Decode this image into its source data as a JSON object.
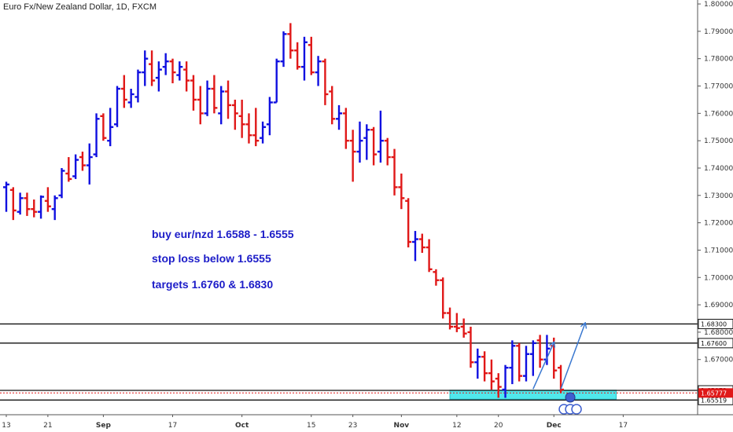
{
  "header": {
    "symbol_title": "Euro Fx/New Zealand Dollar, 1D, FXCM"
  },
  "notes": [
    "buy eur/nzd 1.6588 - 1.6555",
    "stop loss below 1.6555",
    "targets 1.6760 & 1.6830"
  ],
  "colors": {
    "up": "#1010e0",
    "down": "#e01818",
    "zone": "#50e8ec",
    "projection": "#3a78d0",
    "current_price": "#e01818",
    "text_note": "#1c1cc8"
  },
  "chart_data": {
    "type": "ohlc",
    "title": "Euro Fx/New Zealand Dollar, 1D, FXCM",
    "xlabel": "",
    "ylabel": "",
    "ylim": [
      1.6547,
      1.8003
    ],
    "y_ticks": [
      1.8,
      1.79,
      1.78,
      1.77,
      1.76,
      1.75,
      1.74,
      1.73,
      1.72,
      1.71,
      1.7,
      1.69,
      1.68,
      1.67
    ],
    "x_labels": [
      {
        "label": "13",
        "index": 0,
        "bold": false
      },
      {
        "label": "21",
        "index": 6,
        "bold": false
      },
      {
        "label": "Sep",
        "index": 14,
        "bold": true
      },
      {
        "label": "17",
        "index": 24,
        "bold": false
      },
      {
        "label": "Oct",
        "index": 34,
        "bold": true
      },
      {
        "label": "15",
        "index": 44,
        "bold": false
      },
      {
        "label": "23",
        "index": 50,
        "bold": false
      },
      {
        "label": "Nov",
        "index": 57,
        "bold": true
      },
      {
        "label": "12",
        "index": 65,
        "bold": false
      },
      {
        "label": "20",
        "index": 71,
        "bold": false
      },
      {
        "label": "Dec",
        "index": 79,
        "bold": true
      },
      {
        "label": "17",
        "index": 89,
        "bold": false
      }
    ],
    "x_extent": 103,
    "horizontal_lines": [
      {
        "price": 1.683,
        "label": "1.68300",
        "color": "#111111"
      },
      {
        "price": 1.676,
        "label": "1.67600",
        "color": "#111111"
      },
      {
        "price": 1.65872,
        "label": "1.65872",
        "color": "#111111"
      },
      {
        "price": 1.65519,
        "label": "1.65519",
        "color": "#111111"
      }
    ],
    "current_price": {
      "price": 1.65777,
      "label": "1.65777"
    },
    "zone": {
      "top": 1.6588,
      "bottom": 1.6555,
      "start_index": 64,
      "end_index": 88
    },
    "projections": [
      {
        "from": [
          76,
          1.6592
        ],
        "to": [
          79,
          1.6762
        ]
      },
      {
        "from": [
          80,
          1.6592
        ],
        "to": [
          83.5,
          1.6832
        ]
      }
    ],
    "bars": [
      {
        "o": 1.733,
        "h": 1.735,
        "l": 1.724,
        "c": 1.734
      },
      {
        "o": 1.732,
        "h": 1.733,
        "l": 1.721,
        "c": 1.7245
      },
      {
        "o": 1.724,
        "h": 1.731,
        "l": 1.723,
        "c": 1.729
      },
      {
        "o": 1.729,
        "h": 1.731,
        "l": 1.7225,
        "c": 1.725
      },
      {
        "o": 1.725,
        "h": 1.7285,
        "l": 1.722,
        "c": 1.724
      },
      {
        "o": 1.724,
        "h": 1.73,
        "l": 1.7215,
        "c": 1.7295
      },
      {
        "o": 1.728,
        "h": 1.733,
        "l": 1.724,
        "c": 1.726
      },
      {
        "o": 1.725,
        "h": 1.73,
        "l": 1.721,
        "c": 1.729
      },
      {
        "o": 1.73,
        "h": 1.74,
        "l": 1.729,
        "c": 1.739
      },
      {
        "o": 1.738,
        "h": 1.744,
        "l": 1.735,
        "c": 1.736
      },
      {
        "o": 1.737,
        "h": 1.745,
        "l": 1.736,
        "c": 1.743
      },
      {
        "o": 1.744,
        "h": 1.746,
        "l": 1.739,
        "c": 1.741
      },
      {
        "o": 1.741,
        "h": 1.749,
        "l": 1.734,
        "c": 1.744
      },
      {
        "o": 1.745,
        "h": 1.76,
        "l": 1.744,
        "c": 1.758
      },
      {
        "o": 1.759,
        "h": 1.76,
        "l": 1.75,
        "c": 1.751
      },
      {
        "o": 1.75,
        "h": 1.762,
        "l": 1.748,
        "c": 1.755
      },
      {
        "o": 1.756,
        "h": 1.77,
        "l": 1.755,
        "c": 1.769
      },
      {
        "o": 1.769,
        "h": 1.774,
        "l": 1.762,
        "c": 1.765
      },
      {
        "o": 1.764,
        "h": 1.769,
        "l": 1.762,
        "c": 1.767
      },
      {
        "o": 1.766,
        "h": 1.776,
        "l": 1.764,
        "c": 1.775
      },
      {
        "o": 1.775,
        "h": 1.783,
        "l": 1.77,
        "c": 1.78
      },
      {
        "o": 1.778,
        "h": 1.783,
        "l": 1.77,
        "c": 1.772
      },
      {
        "o": 1.773,
        "h": 1.779,
        "l": 1.768,
        "c": 1.776
      },
      {
        "o": 1.777,
        "h": 1.782,
        "l": 1.774,
        "c": 1.779
      },
      {
        "o": 1.779,
        "h": 1.78,
        "l": 1.771,
        "c": 1.775
      },
      {
        "o": 1.774,
        "h": 1.779,
        "l": 1.772,
        "c": 1.777
      },
      {
        "o": 1.776,
        "h": 1.779,
        "l": 1.768,
        "c": 1.772
      },
      {
        "o": 1.772,
        "h": 1.774,
        "l": 1.761,
        "c": 1.765
      },
      {
        "o": 1.765,
        "h": 1.77,
        "l": 1.756,
        "c": 1.76
      },
      {
        "o": 1.76,
        "h": 1.772,
        "l": 1.759,
        "c": 1.769
      },
      {
        "o": 1.769,
        "h": 1.774,
        "l": 1.76,
        "c": 1.762
      },
      {
        "o": 1.76,
        "h": 1.77,
        "l": 1.756,
        "c": 1.768
      },
      {
        "o": 1.768,
        "h": 1.772,
        "l": 1.758,
        "c": 1.763
      },
      {
        "o": 1.763,
        "h": 1.765,
        "l": 1.754,
        "c": 1.76
      },
      {
        "o": 1.759,
        "h": 1.765,
        "l": 1.751,
        "c": 1.756
      },
      {
        "o": 1.756,
        "h": 1.76,
        "l": 1.749,
        "c": 1.752
      },
      {
        "o": 1.752,
        "h": 1.762,
        "l": 1.748,
        "c": 1.75
      },
      {
        "o": 1.751,
        "h": 1.757,
        "l": 1.749,
        "c": 1.755
      },
      {
        "o": 1.756,
        "h": 1.766,
        "l": 1.752,
        "c": 1.764
      },
      {
        "o": 1.764,
        "h": 1.78,
        "l": 1.764,
        "c": 1.779
      },
      {
        "o": 1.779,
        "h": 1.79,
        "l": 1.777,
        "c": 1.789
      },
      {
        "o": 1.789,
        "h": 1.793,
        "l": 1.78,
        "c": 1.783
      },
      {
        "o": 1.783,
        "h": 1.786,
        "l": 1.776,
        "c": 1.777
      },
      {
        "o": 1.777,
        "h": 1.788,
        "l": 1.772,
        "c": 1.786
      },
      {
        "o": 1.785,
        "h": 1.788,
        "l": 1.774,
        "c": 1.775
      },
      {
        "o": 1.775,
        "h": 1.781,
        "l": 1.77,
        "c": 1.779
      },
      {
        "o": 1.779,
        "h": 1.78,
        "l": 1.763,
        "c": 1.767
      },
      {
        "o": 1.768,
        "h": 1.77,
        "l": 1.756,
        "c": 1.758
      },
      {
        "o": 1.758,
        "h": 1.763,
        "l": 1.754,
        "c": 1.76
      },
      {
        "o": 1.76,
        "h": 1.762,
        "l": 1.747,
        "c": 1.75
      },
      {
        "o": 1.75,
        "h": 1.754,
        "l": 1.735,
        "c": 1.746
      },
      {
        "o": 1.746,
        "h": 1.757,
        "l": 1.742,
        "c": 1.75
      },
      {
        "o": 1.751,
        "h": 1.756,
        "l": 1.743,
        "c": 1.754
      },
      {
        "o": 1.754,
        "h": 1.755,
        "l": 1.741,
        "c": 1.745
      },
      {
        "o": 1.746,
        "h": 1.761,
        "l": 1.742,
        "c": 1.75
      },
      {
        "o": 1.75,
        "h": 1.751,
        "l": 1.741,
        "c": 1.744
      },
      {
        "o": 1.744,
        "h": 1.747,
        "l": 1.73,
        "c": 1.733
      },
      {
        "o": 1.733,
        "h": 1.738,
        "l": 1.725,
        "c": 1.729
      },
      {
        "o": 1.728,
        "h": 1.729,
        "l": 1.711,
        "c": 1.713
      },
      {
        "o": 1.713,
        "h": 1.717,
        "l": 1.706,
        "c": 1.714
      },
      {
        "o": 1.714,
        "h": 1.716,
        "l": 1.709,
        "c": 1.711
      },
      {
        "o": 1.711,
        "h": 1.714,
        "l": 1.702,
        "c": 1.703
      },
      {
        "o": 1.702,
        "h": 1.703,
        "l": 1.697,
        "c": 1.699
      },
      {
        "o": 1.699,
        "h": 1.7,
        "l": 1.685,
        "c": 1.687
      },
      {
        "o": 1.687,
        "h": 1.689,
        "l": 1.681,
        "c": 1.682
      },
      {
        "o": 1.682,
        "h": 1.687,
        "l": 1.68,
        "c": 1.6815
      },
      {
        "o": 1.682,
        "h": 1.685,
        "l": 1.678,
        "c": 1.6795
      },
      {
        "o": 1.68,
        "h": 1.682,
        "l": 1.667,
        "c": 1.669
      },
      {
        "o": 1.669,
        "h": 1.674,
        "l": 1.663,
        "c": 1.671
      },
      {
        "o": 1.671,
        "h": 1.673,
        "l": 1.662,
        "c": 1.665
      },
      {
        "o": 1.665,
        "h": 1.67,
        "l": 1.659,
        "c": 1.662
      },
      {
        "o": 1.663,
        "h": 1.665,
        "l": 1.656,
        "c": 1.66
      },
      {
        "o": 1.659,
        "h": 1.668,
        "l": 1.656,
        "c": 1.667
      },
      {
        "o": 1.667,
        "h": 1.677,
        "l": 1.661,
        "c": 1.675
      },
      {
        "o": 1.675,
        "h": 1.676,
        "l": 1.662,
        "c": 1.664
      },
      {
        "o": 1.664,
        "h": 1.675,
        "l": 1.662,
        "c": 1.672
      },
      {
        "o": 1.672,
        "h": 1.677,
        "l": 1.664,
        "c": 1.676
      },
      {
        "o": 1.677,
        "h": 1.679,
        "l": 1.667,
        "c": 1.67
      },
      {
        "o": 1.67,
        "h": 1.679,
        "l": 1.668,
        "c": 1.674
      },
      {
        "o": 1.675,
        "h": 1.678,
        "l": 1.663,
        "c": 1.666
      },
      {
        "o": 1.667,
        "h": 1.668,
        "l": 1.6578,
        "c": 1.659
      }
    ]
  }
}
